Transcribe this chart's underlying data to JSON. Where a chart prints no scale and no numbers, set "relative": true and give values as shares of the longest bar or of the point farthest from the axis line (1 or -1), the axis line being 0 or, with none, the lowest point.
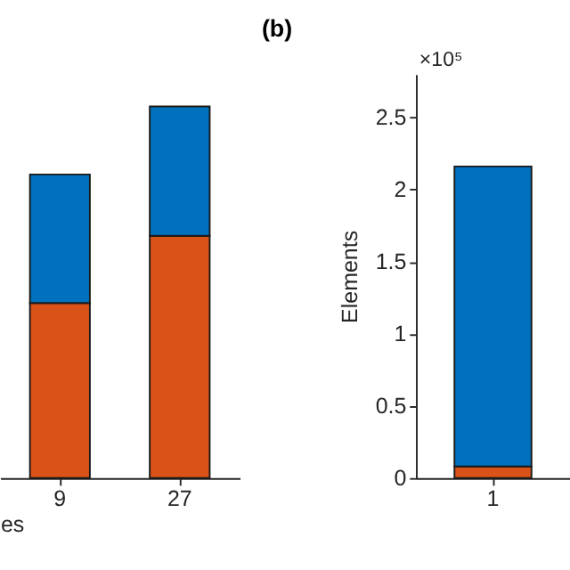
{
  "chart_data": [
    {
      "type": "bar",
      "stacked": true,
      "relative": true,
      "categories": [
        "9",
        "27"
      ],
      "xlabel": "es",
      "series": [
        {
          "color": "#d95319",
          "values": [
            0.471,
            0.652
          ]
        },
        {
          "color": "#0072bd",
          "values": [
            0.346,
            0.348
          ]
        }
      ]
    },
    {
      "type": "bar",
      "stacked": true,
      "title": "(b)",
      "ylabel": "Elements",
      "categories": [
        "1"
      ],
      "ylim": [
        0,
        2.8
      ],
      "yticks": [
        0,
        0.5,
        1,
        1.5,
        2,
        2.5
      ],
      "annotations": [
        "×10⁵"
      ],
      "series": [
        {
          "color": "#d95319",
          "values": [
            0.08
          ]
        },
        {
          "color": "#0072bd",
          "values": [
            2.08
          ]
        }
      ]
    }
  ]
}
